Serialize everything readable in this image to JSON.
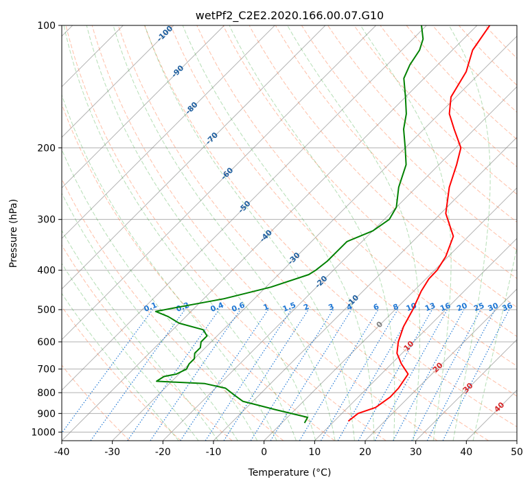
{
  "chart_data": {
    "type": "line",
    "subtype": "skew-t log-p diagram",
    "title": "wetPf2_C2E2.2020.166.00.07.G10",
    "xlabel": "Temperature (°C)",
    "ylabel": "Pressure (hPa)",
    "xlim": [
      -40,
      50
    ],
    "ylim": [
      1050,
      100
    ],
    "y_scale": "log",
    "grid": true,
    "x_ticks": [
      "-40",
      "-30",
      "-20",
      "-10",
      "0",
      "10",
      "20",
      "30",
      "40",
      "50"
    ],
    "y_ticks": [
      "100",
      "200",
      "300",
      "400",
      "500",
      "600",
      "700",
      "800",
      "900",
      "1000"
    ],
    "colors": {
      "temperature": "#ff0000",
      "dewpoint": "#008000",
      "dry_adiabats": "#ff7f50",
      "moist_adiabats": "#2ca02c",
      "mixing_ratio": "#1f77d4",
      "isotherms": "#808080",
      "isotherm_labels_cold": "#1f5f9f",
      "isotherm_labels_warm": "#d62728"
    },
    "isotherm_labels": [
      "-100",
      "-90",
      "-80",
      "-70",
      "-60",
      "-50",
      "-40",
      "-30",
      "-20",
      "-10",
      "0",
      "10",
      "20",
      "30",
      "40"
    ],
    "mixing_ratio_labels": [
      "0.1",
      "0.2",
      "0.4",
      "0.6",
      "1",
      "1.5",
      "2",
      "3",
      "4",
      "6",
      "8",
      "10",
      "13",
      "16",
      "20",
      "25",
      "30",
      "36"
    ],
    "series": [
      {
        "role": "temperature",
        "points": [
          [
            940,
            12.8
          ],
          [
            900,
            13.2
          ],
          [
            870,
            15.5
          ],
          [
            820,
            16.3
          ],
          [
            780,
            16.2
          ],
          [
            720,
            15.3
          ],
          [
            680,
            12.0
          ],
          [
            640,
            9.0
          ],
          [
            600,
            7.0
          ],
          [
            550,
            5.0
          ],
          [
            500,
            3.5
          ],
          [
            450,
            1.5
          ],
          [
            420,
            0.6
          ],
          [
            400,
            0.5
          ],
          [
            370,
            -0.5
          ],
          [
            330,
            -3.0
          ],
          [
            290,
            -9.0
          ],
          [
            250,
            -13.5
          ],
          [
            220,
            -16.5
          ],
          [
            200,
            -19.0
          ],
          [
            180,
            -24.0
          ],
          [
            165,
            -28.0
          ],
          [
            150,
            -31.0
          ],
          [
            130,
            -33.0
          ],
          [
            115,
            -36.0
          ],
          [
            100,
            -37.5
          ]
        ]
      },
      {
        "role": "dewpoint",
        "points": [
          [
            950,
            4.5
          ],
          [
            920,
            4.0
          ],
          [
            880,
            -4.0
          ],
          [
            840,
            -12.0
          ],
          [
            810,
            -15.0
          ],
          [
            780,
            -18.0
          ],
          [
            760,
            -23.0
          ],
          [
            750,
            -33.0
          ],
          [
            730,
            -32.5
          ],
          [
            720,
            -30.5
          ],
          [
            700,
            -29.5
          ],
          [
            680,
            -30.0
          ],
          [
            660,
            -30.0
          ],
          [
            640,
            -31.0
          ],
          [
            620,
            -31.0
          ],
          [
            600,
            -32.0
          ],
          [
            580,
            -32.0
          ],
          [
            560,
            -34.0
          ],
          [
            540,
            -40.0
          ],
          [
            520,
            -43.5
          ],
          [
            505,
            -47.0
          ],
          [
            495,
            -44.0
          ],
          [
            470,
            -36.0
          ],
          [
            440,
            -29.0
          ],
          [
            410,
            -24.0
          ],
          [
            400,
            -23.5
          ],
          [
            380,
            -23.0
          ],
          [
            360,
            -23.0
          ],
          [
            340,
            -23.0
          ],
          [
            320,
            -20.0
          ],
          [
            300,
            -19.0
          ],
          [
            280,
            -20.0
          ],
          [
            250,
            -23.5
          ],
          [
            220,
            -26.5
          ],
          [
            200,
            -30.0
          ],
          [
            180,
            -34.0
          ],
          [
            165,
            -36.5
          ],
          [
            150,
            -40.0
          ],
          [
            135,
            -44.0
          ],
          [
            125,
            -45.5
          ],
          [
            115,
            -46.5
          ],
          [
            108,
            -48.0
          ],
          [
            100,
            -51.0
          ]
        ]
      }
    ]
  }
}
